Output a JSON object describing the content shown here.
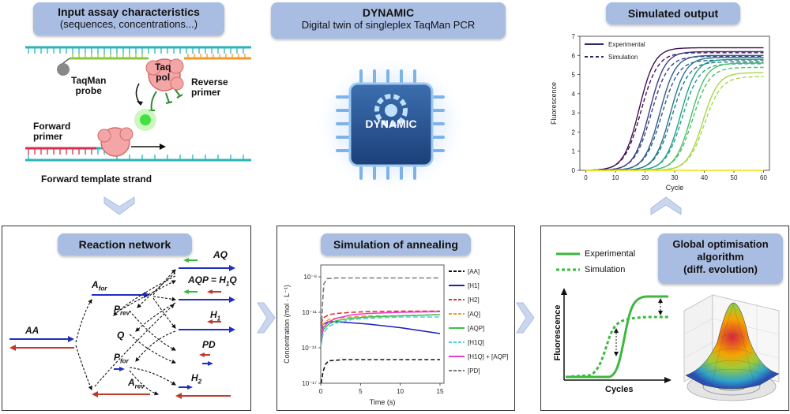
{
  "input_box": {
    "title": "Input assay characteristics",
    "subtitle": "(sequences, concentrations...)"
  },
  "center_box": {
    "title": "DYNAMIC",
    "subtitle": "Digital twin of singleplex TaqMan PCR"
  },
  "chip_label": "DYNAMIC",
  "output_box": {
    "title": "Simulated output"
  },
  "schematic": {
    "taqman_probe": "TaqMan\nprobe",
    "taq_pol": "Taq\npol",
    "reverse_primer": "Reverse\nprimer",
    "forward_primer": "Forward\nprimer",
    "forward_template": "Forward template strand"
  },
  "reaction_network": {
    "title": "Reaction network",
    "nodes": {
      "aa": "AA",
      "afor": "A",
      "afor_sub": "for",
      "prev": "P",
      "prev_sub": "rev",
      "q": "Q",
      "pfor": "P",
      "pfor_sub": "for",
      "arev": "A",
      "arev_sub": "rev",
      "aq": "AQ",
      "aqp": "AQP = H",
      "aqp_sub": "1",
      "aqp_tail": "Q",
      "h1": "H",
      "h1_sub": "1",
      "pd": "PD",
      "h2": "H",
      "h2_sub": "2"
    }
  },
  "annealing": {
    "title": "Simulation of annealing",
    "chart_data": {
      "type": "line",
      "xlabel": "Time (s)",
      "ylabel": "Concentration (mol · L⁻¹)",
      "x_ticks": [
        "0",
        "5",
        "10",
        "15"
      ],
      "y_ticks": [
        "10⁻¹⁷",
        "10⁻¹⁴",
        "10⁻¹¹",
        "10⁻⁸"
      ],
      "y_scale": "log",
      "xlim": [
        0,
        15.5
      ],
      "ylim_exp": [
        -17,
        -7
      ],
      "legend": [
        "[AA]",
        "[H1]",
        "[H2]",
        "[AQ]",
        "[AQP]",
        "[H1Q]",
        "[H1Q] + [AQP]",
        "[PD]"
      ],
      "legend_position": "right",
      "series": [
        {
          "name": "[AA]",
          "color": "#111111",
          "dash": "5,3",
          "x": [
            0.05,
            0.3,
            0.6,
            1,
            3,
            6,
            10,
            15
          ],
          "log_y": [
            -17,
            -16,
            -15.4,
            -15.1,
            -15.0,
            -15.0,
            -15.0,
            -15.0
          ]
        },
        {
          "name": "[H1]",
          "color": "#1f1fbf",
          "dash": "",
          "x": [
            0.05,
            0.3,
            1,
            2,
            4,
            6,
            10,
            15
          ],
          "log_y": [
            -12.8,
            -12.0,
            -11.8,
            -11.8,
            -11.9,
            -12.0,
            -12.3,
            -12.8
          ]
        },
        {
          "name": "[H2]",
          "color": "#e03030",
          "dash": "6,3",
          "x": [
            0.05,
            0.3,
            1,
            2,
            4,
            6,
            10,
            15
          ],
          "log_y": [
            -12.0,
            -11.5,
            -11.2,
            -11.1,
            -11.0,
            -10.95,
            -10.9,
            -10.9
          ]
        },
        {
          "name": "[AQ]",
          "color": "#f29a2e",
          "dash": "6,3",
          "x": [
            0.05,
            0.3,
            1,
            2,
            4,
            6,
            10,
            15
          ],
          "log_y": [
            -12.8,
            -12.0,
            -11.6,
            -11.5,
            -11.4,
            -11.3,
            -11.3,
            -11.2
          ]
        },
        {
          "name": "[AQP]",
          "color": "#3cc24a",
          "dash": "",
          "x": [
            0.05,
            0.3,
            1,
            2,
            4,
            6,
            10,
            15
          ],
          "log_y": [
            -13.6,
            -12.5,
            -12.0,
            -11.7,
            -11.5,
            -11.4,
            -11.3,
            -11.2
          ]
        },
        {
          "name": "[H1Q]",
          "color": "#4fd0d6",
          "dash": "6,3",
          "x": [
            0.05,
            0.3,
            1,
            2,
            4,
            6,
            10,
            15
          ],
          "log_y": [
            -13.8,
            -12.8,
            -12.2,
            -11.9,
            -11.6,
            -11.5,
            -11.4,
            -11.4
          ]
        },
        {
          "name": "[H1Q] + [AQP]",
          "color": "#e83cd3",
          "dash": "",
          "x": [
            0.05,
            0.3,
            1,
            2,
            4,
            6,
            10,
            15
          ],
          "log_y": [
            -13.2,
            -12.3,
            -11.8,
            -11.5,
            -11.2,
            -11.1,
            -11.0,
            -10.95
          ]
        },
        {
          "name": "[PD]",
          "color": "#7a7a7a",
          "dash": "6,3",
          "x": [
            0.05,
            0.2,
            0.4,
            0.8,
            2,
            6,
            10,
            15
          ],
          "log_y": [
            -13.5,
            -10.5,
            -8.6,
            -8.15,
            -8.1,
            -8.1,
            -8.1,
            -8.1
          ]
        }
      ]
    }
  },
  "simulated_output": {
    "chart_data": {
      "type": "line",
      "xlabel": "Cycle",
      "ylabel": "Fluorescence",
      "xlim": [
        -2,
        62
      ],
      "ylim": [
        0,
        7
      ],
      "x_ticks": [
        "0",
        "10",
        "20",
        "30",
        "40",
        "50",
        "60"
      ],
      "y_ticks": [
        "0",
        "1",
        "2",
        "3",
        "4",
        "5",
        "6",
        "7"
      ],
      "legend": [
        "Experimental",
        "Simulation"
      ],
      "legend_position": "top-left",
      "series": [
        {
          "name": "curve1",
          "color": "#44124f",
          "ct": 18,
          "plateau": 6.4
        },
        {
          "name": "curve2",
          "color": "#3b3f86",
          "ct": 21.5,
          "plateau": 6.2
        },
        {
          "name": "curve3",
          "color": "#2e5e8c",
          "ct": 25,
          "plateau": 6.0
        },
        {
          "name": "curve4",
          "color": "#23798a",
          "ct": 28.5,
          "plateau": 5.9
        },
        {
          "name": "curve5",
          "color": "#22a187",
          "ct": 32,
          "plateau": 5.8
        },
        {
          "name": "curve6",
          "color": "#4cbf6a",
          "ct": 35.5,
          "plateau": 5.6
        },
        {
          "name": "curve7",
          "color": "#a6d84a",
          "ct": 39.5,
          "plateau": 5.1
        },
        {
          "name": "baseline",
          "color": "#f2e51d",
          "ct": 999,
          "plateau": 0.05
        }
      ]
    }
  },
  "optimisation": {
    "title": "Global optimisation\nalgorithm\n(diff. evolution)",
    "legend_experimental": "Experimental",
    "legend_simulation": "Simulation",
    "ylabel": "Fluorescence",
    "xlabel": "Cycles"
  },
  "colors": {
    "pill": "#a9bde3",
    "blue_arrow": "#1f2fbf",
    "red_arrow": "#c0392b",
    "green": "#3cb83c"
  }
}
